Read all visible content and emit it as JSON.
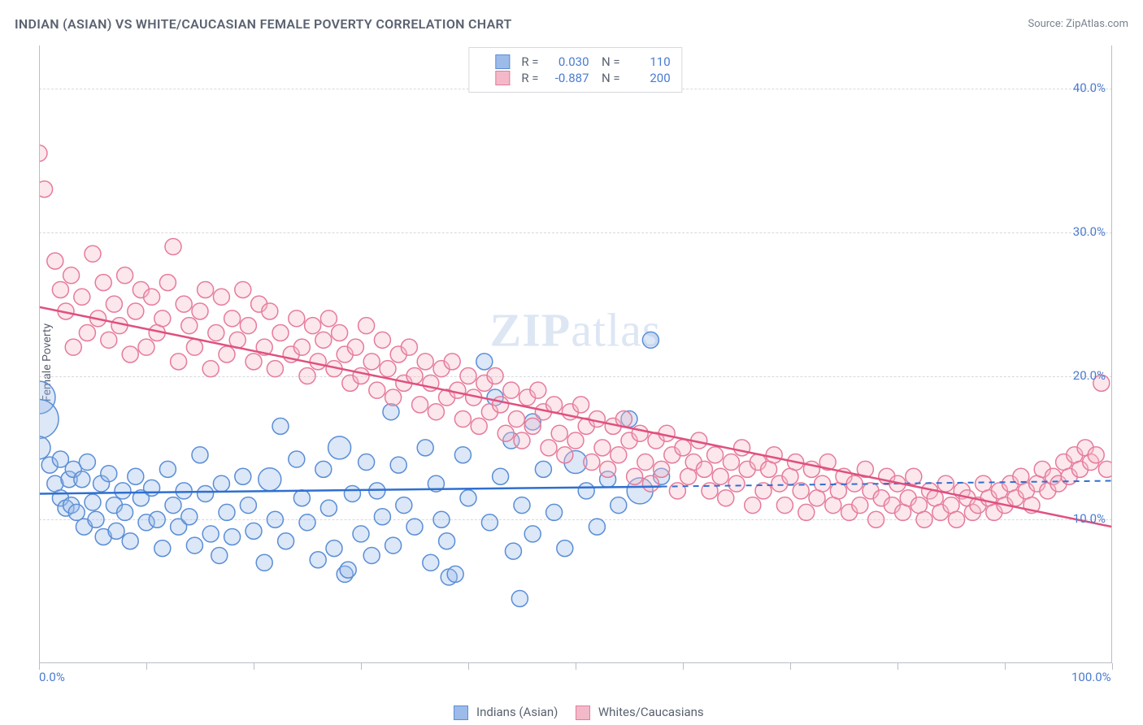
{
  "header": {
    "title": "INDIAN (ASIAN) VS WHITE/CAUCASIAN FEMALE POVERTY CORRELATION CHART",
    "source": "Source: ZipAtlas.com"
  },
  "chart": {
    "type": "scatter",
    "y_axis_label": "Female Poverty",
    "watermark": "ZIPatlas",
    "background_color": "#ffffff",
    "grid_color": "#d6d9de",
    "axis_color": "#b8bec8",
    "tick_label_color": "#4a7bd0",
    "label_color": "#5a6270",
    "xlim": [
      0,
      100
    ],
    "ylim": [
      0,
      43
    ],
    "y_ticks": [
      {
        "v": 10,
        "label": "10.0%"
      },
      {
        "v": 20,
        "label": "20.0%"
      },
      {
        "v": 30,
        "label": "30.0%"
      },
      {
        "v": 40,
        "label": "40.0%"
      }
    ],
    "x_ticks_minor": [
      0,
      10,
      20,
      30,
      40,
      50,
      60,
      70,
      80,
      90,
      100
    ],
    "x_tick_labels": [
      {
        "v": 0,
        "label": "0.0%"
      },
      {
        "v": 100,
        "label": "100.0%"
      }
    ],
    "series": {
      "blue": {
        "label": "Indians (Asian)",
        "fill": "#9cbbe8",
        "stroke": "#5a8ed6",
        "R": "0.030",
        "N": "110",
        "trend": {
          "x1": 0,
          "y1": 11.8,
          "x2": 58,
          "y2": 12.3,
          "x2_dash": 100,
          "y2_dash": 12.7
        },
        "marker_radius": 10,
        "points": [
          [
            0,
            18.5,
            20
          ],
          [
            0,
            17,
            24
          ],
          [
            0,
            15,
            14
          ],
          [
            1,
            13.8
          ],
          [
            1.5,
            12.5
          ],
          [
            2,
            11.5
          ],
          [
            2,
            14.2
          ],
          [
            2.5,
            10.8
          ],
          [
            2.8,
            12.8
          ],
          [
            3,
            11
          ],
          [
            3.2,
            13.5
          ],
          [
            3.5,
            10.5
          ],
          [
            4,
            12.8
          ],
          [
            4.2,
            9.5
          ],
          [
            4.5,
            14
          ],
          [
            5,
            11.2
          ],
          [
            5.3,
            10
          ],
          [
            5.8,
            12.5
          ],
          [
            6,
            8.8
          ],
          [
            6.5,
            13.2
          ],
          [
            7,
            11
          ],
          [
            7.2,
            9.2
          ],
          [
            7.8,
            12
          ],
          [
            8,
            10.5
          ],
          [
            8.5,
            8.5
          ],
          [
            9,
            13
          ],
          [
            9.5,
            11.5
          ],
          [
            10,
            9.8
          ],
          [
            10.5,
            12.2
          ],
          [
            11,
            10
          ],
          [
            11.5,
            8
          ],
          [
            12,
            13.5
          ],
          [
            12.5,
            11
          ],
          [
            13,
            9.5
          ],
          [
            13.5,
            12
          ],
          [
            14,
            10.2
          ],
          [
            14.5,
            8.2
          ],
          [
            15,
            14.5
          ],
          [
            15.5,
            11.8
          ],
          [
            16,
            9
          ],
          [
            16.8,
            7.5
          ],
          [
            17,
            12.5
          ],
          [
            17.5,
            10.5
          ],
          [
            18,
            8.8
          ],
          [
            19,
            13
          ],
          [
            19.5,
            11
          ],
          [
            20,
            9.2
          ],
          [
            21,
            7
          ],
          [
            21.5,
            12.8,
            14
          ],
          [
            22,
            10
          ],
          [
            22.5,
            16.5
          ],
          [
            23,
            8.5
          ],
          [
            24,
            14.2
          ],
          [
            24.5,
            11.5
          ],
          [
            25,
            9.8
          ],
          [
            26,
            7.2
          ],
          [
            26.5,
            13.5
          ],
          [
            27,
            10.8
          ],
          [
            27.5,
            8
          ],
          [
            28,
            15,
            14
          ],
          [
            28.5,
            6.2
          ],
          [
            28.8,
            6.5
          ],
          [
            29.2,
            11.8
          ],
          [
            30,
            9
          ],
          [
            30.5,
            14
          ],
          [
            31,
            7.5
          ],
          [
            31.5,
            12
          ],
          [
            32,
            10.2
          ],
          [
            32.8,
            17.5
          ],
          [
            33,
            8.2
          ],
          [
            33.5,
            13.8
          ],
          [
            34,
            11
          ],
          [
            35,
            9.5
          ],
          [
            36,
            15
          ],
          [
            36.5,
            7
          ],
          [
            37,
            12.5
          ],
          [
            37.5,
            10
          ],
          [
            38,
            8.5
          ],
          [
            38.2,
            6
          ],
          [
            38.8,
            6.2
          ],
          [
            39.5,
            14.5
          ],
          [
            40,
            11.5
          ],
          [
            41.5,
            21
          ],
          [
            42,
            9.8
          ],
          [
            42.5,
            18.5
          ],
          [
            43,
            13
          ],
          [
            44,
            15.5
          ],
          [
            44.2,
            7.8
          ],
          [
            44.8,
            4.5
          ],
          [
            45,
            11
          ],
          [
            46,
            16.8
          ],
          [
            46,
            9
          ],
          [
            47,
            13.5
          ],
          [
            48,
            10.5
          ],
          [
            49,
            8
          ],
          [
            50,
            14,
            14
          ],
          [
            51,
            12
          ],
          [
            52,
            9.5
          ],
          [
            53,
            12.8
          ],
          [
            54,
            11
          ],
          [
            55,
            17
          ],
          [
            56,
            12,
            16
          ],
          [
            57,
            22.5
          ],
          [
            58,
            13
          ]
        ]
      },
      "pink": {
        "label": "Whites/Caucasians",
        "fill": "#f3b9c9",
        "stroke": "#e67b9b",
        "R": "-0.887",
        "N": "200",
        "trend": {
          "x1": 0,
          "y1": 24.8,
          "x2": 100,
          "y2": 9.5
        },
        "marker_radius": 10,
        "points": [
          [
            0,
            35.5
          ],
          [
            0.5,
            33
          ],
          [
            1.5,
            28
          ],
          [
            2,
            26
          ],
          [
            2.5,
            24.5
          ],
          [
            3,
            27
          ],
          [
            3.2,
            22
          ],
          [
            4,
            25.5
          ],
          [
            4.5,
            23
          ],
          [
            5,
            28.5
          ],
          [
            5.5,
            24
          ],
          [
            6,
            26.5
          ],
          [
            6.5,
            22.5
          ],
          [
            7,
            25
          ],
          [
            7.5,
            23.5
          ],
          [
            8,
            27
          ],
          [
            8.5,
            21.5
          ],
          [
            9,
            24.5
          ],
          [
            9.5,
            26
          ],
          [
            10,
            22
          ],
          [
            10.5,
            25.5
          ],
          [
            11,
            23
          ],
          [
            11.5,
            24
          ],
          [
            12,
            26.5
          ],
          [
            12.5,
            29
          ],
          [
            13,
            21
          ],
          [
            13.5,
            25
          ],
          [
            14,
            23.5
          ],
          [
            14.5,
            22
          ],
          [
            15,
            24.5
          ],
          [
            15.5,
            26
          ],
          [
            16,
            20.5
          ],
          [
            16.5,
            23
          ],
          [
            17,
            25.5
          ],
          [
            17.5,
            21.5
          ],
          [
            18,
            24
          ],
          [
            18.5,
            22.5
          ],
          [
            19,
            26
          ],
          [
            19.5,
            23.5
          ],
          [
            20,
            21
          ],
          [
            20.5,
            25
          ],
          [
            21,
            22
          ],
          [
            21.5,
            24.5
          ],
          [
            22,
            20.5
          ],
          [
            22.5,
            23
          ],
          [
            23.5,
            21.5
          ],
          [
            24,
            24
          ],
          [
            24.5,
            22
          ],
          [
            25,
            20
          ],
          [
            25.5,
            23.5
          ],
          [
            26,
            21
          ],
          [
            26.5,
            22.5
          ],
          [
            27,
            24
          ],
          [
            27.5,
            20.5
          ],
          [
            28,
            23
          ],
          [
            28.5,
            21.5
          ],
          [
            29,
            19.5
          ],
          [
            29.5,
            22
          ],
          [
            30,
            20
          ],
          [
            30.5,
            23.5
          ],
          [
            31,
            21
          ],
          [
            31.5,
            19
          ],
          [
            32,
            22.5
          ],
          [
            32.5,
            20.5
          ],
          [
            33,
            18.5
          ],
          [
            33.5,
            21.5
          ],
          [
            34,
            19.5
          ],
          [
            34.5,
            22
          ],
          [
            35,
            20
          ],
          [
            35.5,
            18
          ],
          [
            36,
            21
          ],
          [
            36.5,
            19.5
          ],
          [
            37,
            17.5
          ],
          [
            37.5,
            20.5
          ],
          [
            38,
            18.5
          ],
          [
            38.5,
            21
          ],
          [
            39,
            19
          ],
          [
            39.5,
            17
          ],
          [
            40,
            20
          ],
          [
            40.5,
            18.5
          ],
          [
            41,
            16.5
          ],
          [
            41.5,
            19.5
          ],
          [
            42,
            17.5
          ],
          [
            42.5,
            20
          ],
          [
            43,
            18
          ],
          [
            43.5,
            16
          ],
          [
            44,
            19
          ],
          [
            44.5,
            17
          ],
          [
            45,
            15.5
          ],
          [
            45.5,
            18.5
          ],
          [
            46,
            16.5
          ],
          [
            46.5,
            19
          ],
          [
            47,
            17.5
          ],
          [
            47.5,
            15
          ],
          [
            48,
            18
          ],
          [
            48.5,
            16
          ],
          [
            49,
            14.5
          ],
          [
            49.5,
            17.5
          ],
          [
            50,
            15.5
          ],
          [
            50.5,
            18
          ],
          [
            51,
            16.5
          ],
          [
            51.5,
            14
          ],
          [
            52,
            17
          ],
          [
            52.5,
            15
          ],
          [
            53,
            13.5
          ],
          [
            53.5,
            16.5
          ],
          [
            54,
            14.5
          ],
          [
            54.5,
            17
          ],
          [
            55,
            15.5
          ],
          [
            55.5,
            13
          ],
          [
            56,
            16
          ],
          [
            56.5,
            14
          ],
          [
            57,
            12.5
          ],
          [
            57.5,
            15.5
          ],
          [
            58,
            13.5
          ],
          [
            58.5,
            16
          ],
          [
            59,
            14.5
          ],
          [
            59.5,
            12
          ],
          [
            60,
            15
          ],
          [
            60.5,
            13
          ],
          [
            61,
            14
          ],
          [
            61.5,
            15.5
          ],
          [
            62,
            13.5
          ],
          [
            62.5,
            12
          ],
          [
            63,
            14.5
          ],
          [
            63.5,
            13
          ],
          [
            64,
            11.5
          ],
          [
            64.5,
            14
          ],
          [
            65,
            12.5
          ],
          [
            65.5,
            15
          ],
          [
            66,
            13.5
          ],
          [
            66.5,
            11
          ],
          [
            67,
            14
          ],
          [
            67.5,
            12
          ],
          [
            68,
            13.5
          ],
          [
            68.5,
            14.5
          ],
          [
            69,
            12.5
          ],
          [
            69.5,
            11
          ],
          [
            70,
            13
          ],
          [
            70.5,
            14
          ],
          [
            71,
            12
          ],
          [
            71.5,
            10.5
          ],
          [
            72,
            13.5
          ],
          [
            72.5,
            11.5
          ],
          [
            73,
            12.5
          ],
          [
            73.5,
            14
          ],
          [
            74,
            11
          ],
          [
            74.5,
            12
          ],
          [
            75,
            13
          ],
          [
            75.5,
            10.5
          ],
          [
            76,
            12.5
          ],
          [
            76.5,
            11
          ],
          [
            77,
            13.5
          ],
          [
            77.5,
            12
          ],
          [
            78,
            10
          ],
          [
            78.5,
            11.5
          ],
          [
            79,
            13
          ],
          [
            79.5,
            11
          ],
          [
            80,
            12.5
          ],
          [
            80.5,
            10.5
          ],
          [
            81,
            11.5
          ],
          [
            81.5,
            13
          ],
          [
            82,
            11
          ],
          [
            82.5,
            10
          ],
          [
            83,
            12
          ],
          [
            83.5,
            11.5
          ],
          [
            84,
            10.5
          ],
          [
            84.5,
            12.5
          ],
          [
            85,
            11
          ],
          [
            85.5,
            10
          ],
          [
            86,
            12
          ],
          [
            86.5,
            11.5
          ],
          [
            87,
            10.5
          ],
          [
            87.5,
            11
          ],
          [
            88,
            12.5
          ],
          [
            88.5,
            11.5
          ],
          [
            89,
            10.5
          ],
          [
            89.5,
            12
          ],
          [
            90,
            11
          ],
          [
            90.5,
            12.5
          ],
          [
            91,
            11.5
          ],
          [
            91.5,
            13
          ],
          [
            92,
            12
          ],
          [
            92.5,
            11
          ],
          [
            93,
            12.5
          ],
          [
            93.5,
            13.5
          ],
          [
            94,
            12
          ],
          [
            94.5,
            13
          ],
          [
            95,
            12.5
          ],
          [
            95.5,
            14
          ],
          [
            96,
            13
          ],
          [
            96.5,
            14.5
          ],
          [
            97,
            13.5
          ],
          [
            97.5,
            15
          ],
          [
            98,
            14
          ],
          [
            98.5,
            14.5
          ],
          [
            99,
            19.5
          ],
          [
            99.5,
            13.5
          ]
        ]
      }
    }
  }
}
